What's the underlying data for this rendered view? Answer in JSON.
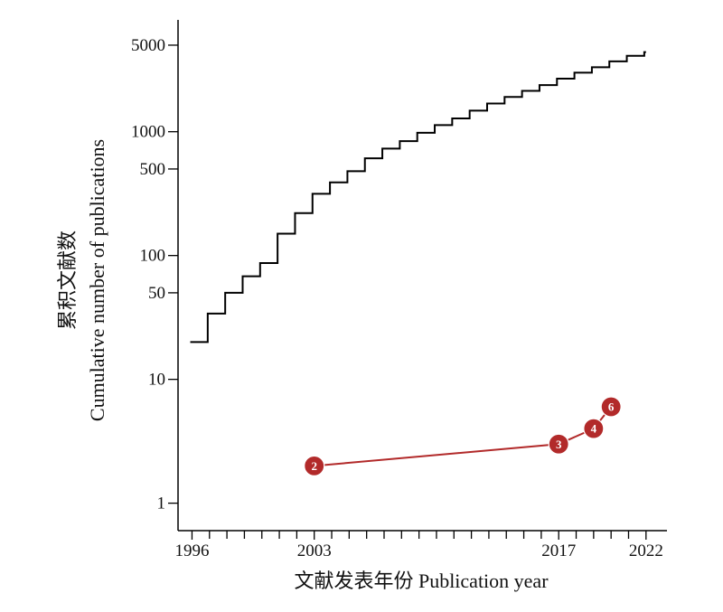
{
  "chart_data": {
    "type": "line",
    "xlabel": "文献发表年份 Publication year",
    "ylabel_cn": "累积文献数",
    "ylabel_en": "Cumulative number of publications",
    "yscale": "log",
    "xlim": [
      1995.2,
      2023.2
    ],
    "ylim": [
      0.6,
      8000
    ],
    "x_tick_labels": [
      1996,
      2003,
      2017,
      2022
    ],
    "x_minor_ticks": [
      1996,
      1997,
      1998,
      1999,
      2000,
      2001,
      2002,
      2003,
      2004,
      2005,
      2006,
      2007,
      2008,
      2009,
      2010,
      2011,
      2012,
      2013,
      2014,
      2015,
      2016,
      2017,
      2018,
      2019,
      2020,
      2021,
      2022
    ],
    "y_tick_labels": [
      1,
      10,
      50,
      100,
      500,
      1000,
      5000
    ],
    "series": [
      {
        "style": "step",
        "color": "#000000",
        "x": [
          1996,
          1997,
          1998,
          1999,
          2000,
          2001,
          2002,
          2003,
          2004,
          2005,
          2006,
          2007,
          2008,
          2009,
          2010,
          2011,
          2012,
          2013,
          2014,
          2015,
          2016,
          2017,
          2018,
          2019,
          2020,
          2021,
          2022
        ],
        "y": [
          20,
          34,
          50,
          68,
          87,
          150,
          220,
          315,
          390,
          480,
          610,
          730,
          840,
          980,
          1130,
          1280,
          1480,
          1690,
          1910,
          2140,
          2380,
          2680,
          3000,
          3320,
          3700,
          4100,
          4400
        ]
      },
      {
        "style": "line-markers",
        "color": "#b22a2a",
        "x": [
          2003,
          2017,
          2019,
          2020
        ],
        "y": [
          2,
          3,
          4,
          6
        ],
        "point_labels": [
          "2",
          "3",
          "4",
          "6"
        ]
      }
    ]
  }
}
